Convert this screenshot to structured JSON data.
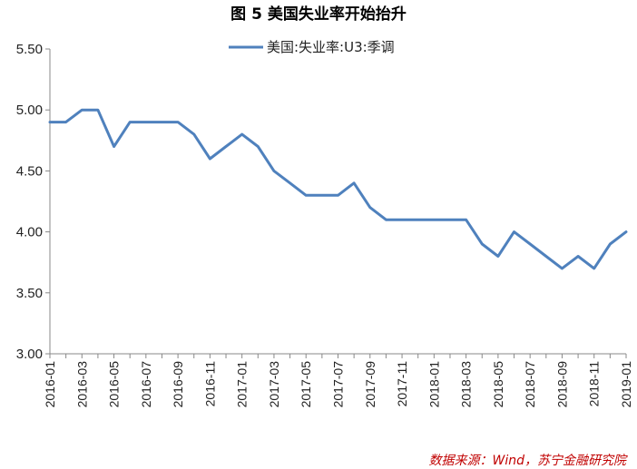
{
  "chart_data": {
    "type": "line",
    "title": "图 5  美国失业率开始抬升",
    "xlabel": "",
    "ylabel": "",
    "ylim": [
      3.0,
      5.5
    ],
    "yticks": [
      "3.00",
      "3.50",
      "4.00",
      "4.50",
      "5.00",
      "5.50"
    ],
    "grid": false,
    "legend": "top-center",
    "x": [
      "2016-01",
      "2016-02",
      "2016-03",
      "2016-04",
      "2016-05",
      "2016-06",
      "2016-07",
      "2016-08",
      "2016-09",
      "2016-10",
      "2016-11",
      "2016-12",
      "2017-01",
      "2017-02",
      "2017-03",
      "2017-04",
      "2017-05",
      "2017-06",
      "2017-07",
      "2017-08",
      "2017-09",
      "2017-10",
      "2017-11",
      "2017-12",
      "2018-01",
      "2018-02",
      "2018-03",
      "2018-04",
      "2018-05",
      "2018-06",
      "2018-07",
      "2018-08",
      "2018-09",
      "2018-10",
      "2018-11",
      "2018-12",
      "2019-01"
    ],
    "xtick_labels": [
      "2016-01",
      "2016-03",
      "2016-05",
      "2016-07",
      "2016-09",
      "2016-11",
      "2017-01",
      "2017-03",
      "2017-05",
      "2017-07",
      "2017-09",
      "2017-11",
      "2018-01",
      "2018-03",
      "2018-05",
      "2018-07",
      "2018-09",
      "2018-11",
      "2019-01"
    ],
    "series": [
      {
        "name": "美国:失业率:U3:季调",
        "color": "#4f81bd",
        "values": [
          4.9,
          4.9,
          5.0,
          5.0,
          4.7,
          4.9,
          4.9,
          4.9,
          4.9,
          4.8,
          4.6,
          4.7,
          4.8,
          4.7,
          4.5,
          4.4,
          4.3,
          4.3,
          4.3,
          4.4,
          4.2,
          4.1,
          4.1,
          4.1,
          4.1,
          4.1,
          4.1,
          3.9,
          3.8,
          4.0,
          3.9,
          3.8,
          3.7,
          3.8,
          3.7,
          3.9,
          4.0
        ]
      }
    ]
  },
  "source": "数据来源：Wind，苏宁金融研究院"
}
